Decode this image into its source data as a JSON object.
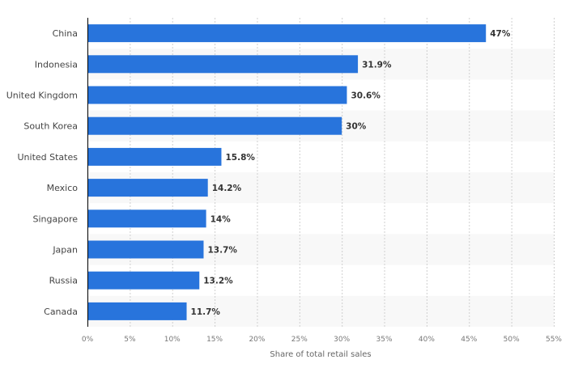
{
  "chart_data": {
    "type": "bar",
    "orientation": "horizontal",
    "categories": [
      "China",
      "Indonesia",
      "United Kingdom",
      "South Korea",
      "United States",
      "Mexico",
      "Singapore",
      "Japan",
      "Russia",
      "Canada"
    ],
    "values": [
      47,
      31.9,
      30.6,
      30,
      15.8,
      14.2,
      14,
      13.7,
      13.2,
      11.7
    ],
    "data_labels": [
      "47%",
      "31.9%",
      "30.6%",
      "30%",
      "15.8%",
      "14.2%",
      "14%",
      "13.7%",
      "13.2%",
      "11.7%"
    ],
    "xlabel": "Share of total retail sales",
    "ylabel": "",
    "xlim": [
      0,
      55
    ],
    "xticks": [
      "0%",
      "5%",
      "10%",
      "15%",
      "20%",
      "25%",
      "30%",
      "35%",
      "40%",
      "45%",
      "50%",
      "55%"
    ],
    "grid": true,
    "colors": {
      "bar": "#2874dc",
      "band": "#f8f8f8",
      "grid": "#cfcfcf"
    }
  }
}
